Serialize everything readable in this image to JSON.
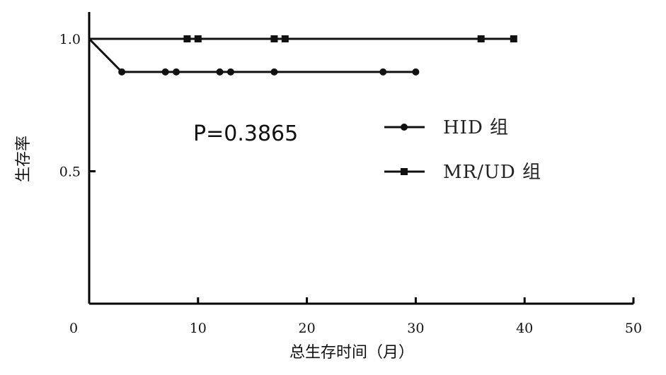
{
  "chart_data": {
    "type": "line",
    "title": "",
    "xlabel": "总生存时间（月）",
    "ylabel": "生存率",
    "xlim": [
      0,
      50
    ],
    "ylim": [
      0,
      1.0
    ],
    "x_ticks": [
      0,
      10,
      20,
      30,
      40,
      50
    ],
    "x_tick_labels": [
      "0",
      "10",
      "20",
      "30",
      "40",
      "50"
    ],
    "y_ticks": [
      0.5,
      1.0
    ],
    "y_tick_labels": [
      "0.5",
      "1.0"
    ],
    "grid": false,
    "legend_position": "right",
    "annotation": "P=0.3865",
    "series": [
      {
        "name": "HID 组",
        "marker": "circle",
        "color": "#111111",
        "steps": [
          [
            0,
            1.0
          ],
          [
            3,
            0.875
          ],
          [
            30,
            0.875
          ]
        ],
        "censored": [
          [
            3,
            0.875
          ],
          [
            7,
            0.875
          ],
          [
            8,
            0.875
          ],
          [
            12,
            0.875
          ],
          [
            13,
            0.875
          ],
          [
            17,
            0.875
          ],
          [
            27,
            0.875
          ],
          [
            30,
            0.875
          ]
        ]
      },
      {
        "name": "MR/UD 组",
        "marker": "square",
        "color": "#111111",
        "steps": [
          [
            0,
            1.0
          ],
          [
            39,
            1.0
          ]
        ],
        "censored": [
          [
            9,
            1.0
          ],
          [
            10,
            1.0
          ],
          [
            17,
            1.0
          ],
          [
            18,
            1.0
          ],
          [
            36,
            1.0
          ],
          [
            39,
            1.0
          ]
        ]
      }
    ]
  }
}
